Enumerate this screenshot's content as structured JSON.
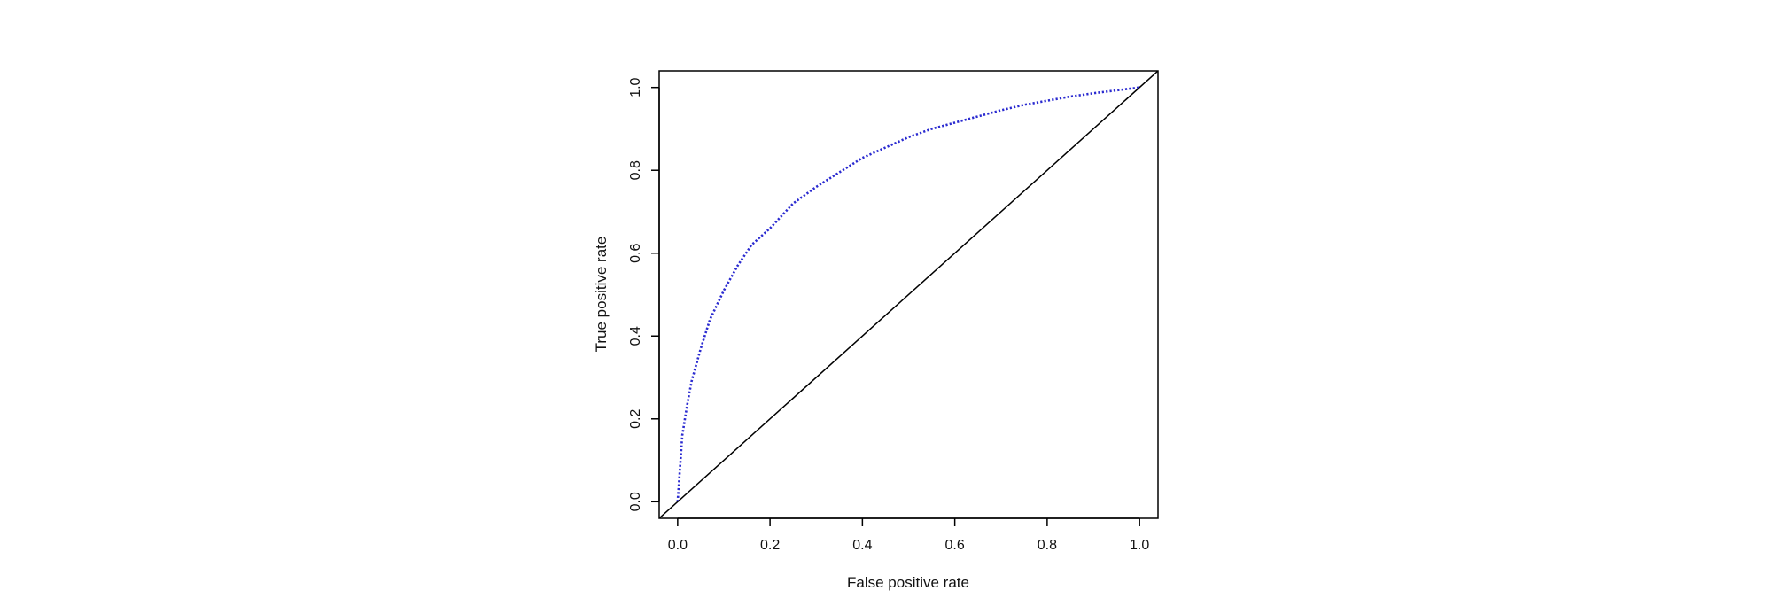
{
  "chart_data": {
    "type": "line",
    "title": "",
    "xlabel": "False positive rate",
    "ylabel": "True positive rate",
    "xlim": [
      -0.04,
      1.04
    ],
    "ylim": [
      -0.04,
      1.04
    ],
    "x_ticks": [
      0.0,
      0.2,
      0.4,
      0.6,
      0.8,
      1.0
    ],
    "y_ticks": [
      0.0,
      0.2,
      0.4,
      0.6,
      0.8,
      1.0
    ],
    "x_tick_labels": [
      "0.0",
      "0.2",
      "0.4",
      "0.6",
      "0.8",
      "1.0"
    ],
    "y_tick_labels": [
      "0.0",
      "0.2",
      "0.4",
      "0.6",
      "0.8",
      "1.0"
    ],
    "grid": false,
    "legend": "none",
    "series": [
      {
        "line_style": "dotted",
        "color": "#2a2ad0",
        "points": [
          [
            0.0,
            0.0
          ],
          [
            0.005,
            0.08
          ],
          [
            0.01,
            0.16
          ],
          [
            0.02,
            0.23
          ],
          [
            0.03,
            0.29
          ],
          [
            0.05,
            0.37
          ],
          [
            0.07,
            0.44
          ],
          [
            0.1,
            0.51
          ],
          [
            0.13,
            0.57
          ],
          [
            0.16,
            0.62
          ],
          [
            0.2,
            0.66
          ],
          [
            0.25,
            0.72
          ],
          [
            0.3,
            0.76
          ],
          [
            0.35,
            0.795
          ],
          [
            0.4,
            0.83
          ],
          [
            0.45,
            0.855
          ],
          [
            0.5,
            0.88
          ],
          [
            0.55,
            0.9
          ],
          [
            0.6,
            0.915
          ],
          [
            0.65,
            0.93
          ],
          [
            0.7,
            0.945
          ],
          [
            0.75,
            0.958
          ],
          [
            0.8,
            0.968
          ],
          [
            0.85,
            0.978
          ],
          [
            0.9,
            0.986
          ],
          [
            0.95,
            0.993
          ],
          [
            1.0,
            1.0
          ]
        ]
      },
      {
        "line_style": "solid",
        "color": "#000000",
        "points": [
          [
            -0.04,
            -0.04
          ],
          [
            1.04,
            1.04
          ]
        ]
      }
    ]
  }
}
